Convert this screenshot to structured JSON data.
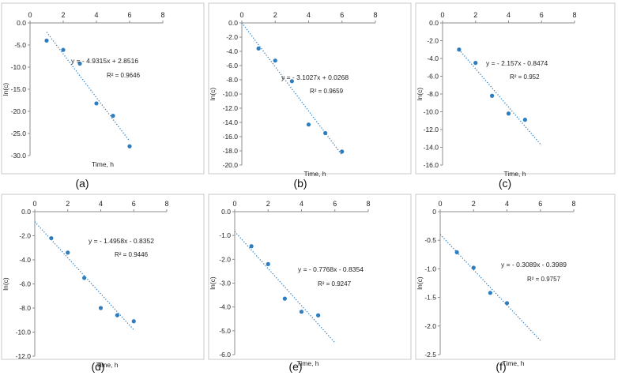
{
  "chart_data": [
    {
      "type": "scatter",
      "panel_label": "(a)",
      "xlabel": "Time, h",
      "ylabel": "ln(c)",
      "xlim": [
        0,
        8
      ],
      "ylim": [
        -30,
        0
      ],
      "xticks": [
        0,
        2,
        4,
        6,
        8
      ],
      "yticks": [
        0,
        -5,
        -10,
        -15,
        -20,
        -25,
        -30
      ],
      "ytick_labels": [
        "0.0",
        "-5.0",
        "-10.0",
        "-15.0",
        "-20.0",
        "-25.0",
        "-30.0"
      ],
      "x_axis_position": "top",
      "x": [
        1,
        2,
        3,
        4,
        5,
        6
      ],
      "y": [
        -4.0,
        -6.1,
        -9.2,
        -18.2,
        -21.0,
        -27.9
      ],
      "trendline": {
        "slope": -4.9315,
        "intercept": 2.8516,
        "x_range": [
          1,
          6
        ]
      },
      "equation": "y = - 4.9315x + 2.8516",
      "r2": "R² = 0.9646"
    },
    {
      "type": "scatter",
      "panel_label": "(b)",
      "xlabel": "Time, h",
      "ylabel": "ln(c)",
      "xlim": [
        0,
        8
      ],
      "ylim": [
        -20,
        0
      ],
      "xticks": [
        0,
        2,
        4,
        6,
        8
      ],
      "yticks": [
        0,
        -2,
        -4,
        -6,
        -8,
        -10,
        -12,
        -14,
        -16,
        -18,
        -20
      ],
      "ytick_labels": [
        "0.0",
        "-2.0",
        "-4.0",
        "-6.0",
        "-8.0",
        "-10.0",
        "-12.0",
        "-14.0",
        "-16.0",
        "-18.0",
        "-20.0"
      ],
      "x_axis_position": "top",
      "x": [
        1,
        2,
        3,
        4,
        5,
        6
      ],
      "y": [
        -3.6,
        -5.3,
        -8.2,
        -14.3,
        -15.5,
        -18.1
      ],
      "trendline": {
        "slope": -3.1027,
        "intercept": 0.0268,
        "x_range": [
          0,
          6
        ]
      },
      "equation": "y = - 3.1027x + 0.0268",
      "r2": "R² = 0.9659"
    },
    {
      "type": "scatter",
      "panel_label": "(c)",
      "xlabel": "Time, h",
      "ylabel": "ln(c)",
      "xlim": [
        0,
        8
      ],
      "ylim": [
        -16,
        0
      ],
      "xticks": [
        0,
        2,
        4,
        6,
        8
      ],
      "yticks": [
        0,
        -2,
        -4,
        -6,
        -8,
        -10,
        -12,
        -14,
        -16
      ],
      "ytick_labels": [
        "0.0",
        "-2.0",
        "-4.0",
        "-6.0",
        "-8.0",
        "-10.0",
        "-12.0",
        "-14.0",
        "-16.0"
      ],
      "x_axis_position": "top",
      "x": [
        1,
        2,
        3,
        4,
        5
      ],
      "y": [
        -3.0,
        -4.5,
        -8.2,
        -10.2,
        -10.9
      ],
      "trendline": {
        "slope": -2.157,
        "intercept": -0.8474,
        "x_range": [
          1,
          6
        ]
      },
      "equation": "y = - 2.157x - 0.8474",
      "r2": "R² = 0.952"
    },
    {
      "type": "scatter",
      "panel_label": "(d)",
      "xlabel": "Time, h",
      "ylabel": "ln(c)",
      "xlim": [
        0,
        8
      ],
      "ylim": [
        -12,
        0
      ],
      "xticks": [
        0,
        2,
        4,
        6,
        8
      ],
      "yticks": [
        0,
        -2,
        -4,
        -6,
        -8,
        -10,
        -12
      ],
      "ytick_labels": [
        "0.0",
        "-2.0",
        "-4.0",
        "-6.0",
        "-8.0",
        "-10.0",
        "-12.0"
      ],
      "x_axis_position": "top",
      "x": [
        1,
        2,
        3,
        4,
        5,
        6
      ],
      "y": [
        -2.2,
        -3.4,
        -5.5,
        -8.0,
        -8.6,
        -9.1
      ],
      "trendline": {
        "slope": -1.4958,
        "intercept": -0.8352,
        "x_range": [
          0,
          6
        ]
      },
      "equation": "y = - 1.4958x - 0.8352",
      "r2": "R² = 0.9446"
    },
    {
      "type": "scatter",
      "panel_label": "(e)",
      "xlabel": "Time, h",
      "ylabel": "ln(c)",
      "xlim": [
        0,
        8
      ],
      "ylim": [
        -6,
        0
      ],
      "xticks": [
        0,
        2,
        4,
        6,
        8
      ],
      "yticks": [
        0,
        -1,
        -2,
        -3,
        -4,
        -5,
        -6
      ],
      "ytick_labels": [
        "0.0",
        "-1.0",
        "-2.0",
        "-3.0",
        "-4.0",
        "-5.0",
        "-6.0"
      ],
      "x_axis_position": "top",
      "x": [
        1,
        2,
        3,
        4,
        5
      ],
      "y": [
        -1.45,
        -2.2,
        -3.65,
        -4.2,
        -4.35
      ],
      "trendline": {
        "slope": -0.7768,
        "intercept": -0.8354,
        "x_range": [
          0,
          6
        ]
      },
      "equation": "y = - 0.7768x - 0.8354",
      "r2": "R² = 0.9247"
    },
    {
      "type": "scatter",
      "panel_label": "(f)",
      "xlabel": "Time, h",
      "ylabel": "ln(c)",
      "xlim": [
        0,
        8
      ],
      "ylim": [
        -2.5,
        0
      ],
      "xticks": [
        0,
        2,
        4,
        6,
        8
      ],
      "yticks": [
        0,
        -0.5,
        -1.0,
        -1.5,
        -2.0,
        -2.5
      ],
      "ytick_labels": [
        "0",
        "-0.5",
        "-1.0",
        "-1.5",
        "-2.0",
        "-2.5"
      ],
      "x_axis_position": "top",
      "x": [
        1,
        2,
        3,
        4
      ],
      "y": [
        -0.71,
        -0.98,
        -1.42,
        -1.6
      ],
      "trendline": {
        "slope": -0.3089,
        "intercept": -0.3989,
        "x_range": [
          0,
          6
        ]
      },
      "equation": "y = - 0.3089x - 0.3989",
      "r2": "R² = 0.9757"
    }
  ],
  "colors": {
    "marker": "#2e7dbf",
    "trendline": "#2e7dbf",
    "axis": "#8c8c8c",
    "text": "#222222",
    "frame": "#c8c8c8"
  }
}
